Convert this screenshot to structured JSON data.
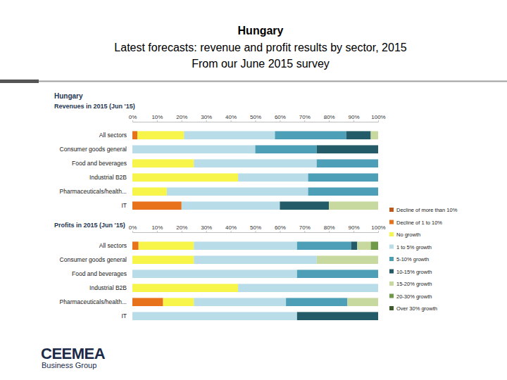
{
  "header": {
    "title": "Hungary",
    "subtitle": [
      "Latest forecasts: revenue and profit results by sector, 2015",
      "From our June 2015 survey"
    ],
    "chart_heading": "Hungary"
  },
  "footer": {
    "logo": "CEEMEA",
    "logo_sub": "Business Group"
  },
  "chart_data": [
    {
      "type": "bar",
      "orientation": "horizontal",
      "stacked": true,
      "legend": "right",
      "title": "Revenues in 2015 (Jun '15)",
      "categories": [
        "All sectors",
        "Consumer goods general",
        "Food and beverages",
        "Industrial B2B",
        "Pharmaceuticals/health...",
        "IT"
      ],
      "xlim": [
        0,
        100
      ],
      "xticks": [
        {
          "value": 0,
          "label": "0%"
        },
        {
          "value": 10,
          "label": "10%"
        },
        {
          "value": 20,
          "label": "20%"
        },
        {
          "value": 30,
          "label": "30%"
        },
        {
          "value": 40,
          "label": "40%"
        },
        {
          "value": 50,
          "label": "50%"
        },
        {
          "value": 60,
          "label": "60%"
        },
        {
          "value": 70,
          "label": "70%"
        },
        {
          "value": 80,
          "label": "80%"
        },
        {
          "value": 90,
          "label": "90%"
        },
        {
          "value": 100,
          "label": "100%"
        }
      ],
      "series": [
        {
          "name": "Decline of more than 10%",
          "color": "#c0561a",
          "values": [
            0,
            0,
            0,
            0,
            0,
            0
          ]
        },
        {
          "name": "Decline of 1 to 10%",
          "color": "#e8711c",
          "values": [
            2,
            0,
            0,
            0,
            0,
            20
          ]
        },
        {
          "name": "No growth",
          "color": "#f7f54a",
          "values": [
            19,
            0,
            25,
            43,
            14,
            0
          ]
        },
        {
          "name": "1 to 5% growth",
          "color": "#b9dde8",
          "values": [
            37,
            50,
            50,
            28.5,
            57.5,
            40
          ]
        },
        {
          "name": "5-10% growth",
          "color": "#4d9fb8",
          "values": [
            29,
            25,
            25,
            28.5,
            28.5,
            0
          ]
        },
        {
          "name": "10-15% growth",
          "color": "#235b68",
          "values": [
            10,
            25,
            0,
            0,
            0,
            20
          ]
        },
        {
          "name": "15-20% growth",
          "color": "#c8d9a0",
          "values": [
            3,
            0,
            0,
            0,
            0,
            20
          ]
        },
        {
          "name": "20-30% growth",
          "color": "#6f9a48",
          "values": [
            0,
            0,
            0,
            0,
            0,
            0
          ]
        },
        {
          "name": "Over 30% growth",
          "color": "#3f5a2a",
          "values": [
            0,
            0,
            0,
            0,
            0,
            0
          ]
        }
      ]
    },
    {
      "type": "bar",
      "orientation": "horizontal",
      "stacked": true,
      "title": "Profits in 2015 (Jun '15)",
      "categories": [
        "All sectors",
        "Consumer goods general",
        "Food and beverages",
        "Industrial B2B",
        "Pharmaceuticals/health...",
        "IT"
      ],
      "xlim": [
        0,
        100
      ],
      "xticks": [
        {
          "value": 0,
          "label": "0%"
        },
        {
          "value": 10,
          "label": "10%"
        },
        {
          "value": 20,
          "label": "20%"
        },
        {
          "value": 30,
          "label": "30%"
        },
        {
          "value": 40,
          "label": "40%"
        },
        {
          "value": 50,
          "label": "50%"
        },
        {
          "value": 60,
          "label": "60%"
        },
        {
          "value": 70,
          "label": "70%"
        },
        {
          "value": 80,
          "label": "80%"
        },
        {
          "value": 90,
          "label": "90%"
        },
        {
          "value": 100,
          "label": "100%"
        }
      ],
      "series": [
        {
          "color": "#c0561a",
          "values": [
            0,
            0,
            0,
            0,
            0,
            0
          ]
        },
        {
          "color": "#e8711c",
          "values": [
            2.5,
            0,
            0,
            0,
            12.5,
            0
          ]
        },
        {
          "color": "#f7f54a",
          "values": [
            22.5,
            25,
            0,
            43,
            12.5,
            0
          ]
        },
        {
          "color": "#b9dde8",
          "values": [
            42,
            50,
            67,
            57,
            37.5,
            67
          ]
        },
        {
          "color": "#4d9fb8",
          "values": [
            22,
            0,
            33,
            0,
            25,
            0
          ]
        },
        {
          "color": "#235b68",
          "values": [
            2.5,
            0,
            0,
            0,
            0,
            33
          ]
        },
        {
          "color": "#c8d9a0",
          "values": [
            5.5,
            25,
            0,
            0,
            12.5,
            0
          ]
        },
        {
          "color": "#6f9a48",
          "values": [
            3,
            0,
            0,
            0,
            0,
            0
          ]
        },
        {
          "color": "#3f5a2a",
          "values": [
            0,
            0,
            0,
            0,
            0,
            0
          ]
        }
      ]
    }
  ]
}
